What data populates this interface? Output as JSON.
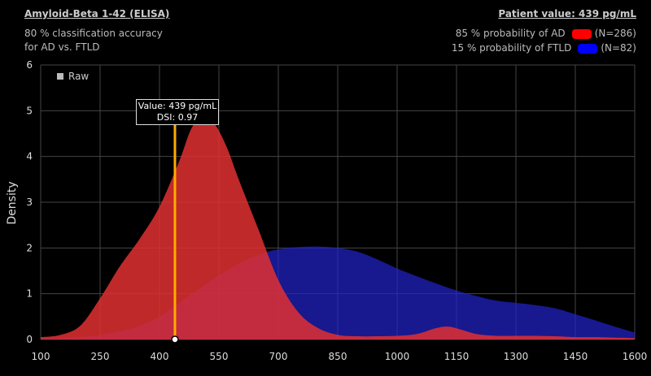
{
  "header": {
    "title": "Amyloid-Beta 1-42 (ELISA)",
    "accuracy_line1": "80 % classification accuracy",
    "accuracy_line2": "for AD vs. FTLD",
    "patient_value": "Patient value: 439 pg/mL"
  },
  "legend": {
    "ad": {
      "label": "85 % probability of AD",
      "count": "(N=286)",
      "color": "#ff0000"
    },
    "ftld": {
      "label": "15 % probability of FTLD",
      "count": "(N=82)",
      "color": "#0000ff"
    }
  },
  "raw_toggle": {
    "label": "Raw"
  },
  "tooltip": {
    "line1": "Value: 439 pg/mL",
    "line2": "DSI: 0.97"
  },
  "chart_data": {
    "type": "area",
    "ylabel": "Density",
    "xlim": [
      100,
      1600
    ],
    "ylim": [
      0,
      6
    ],
    "x_ticks": [
      100,
      250,
      400,
      550,
      700,
      850,
      1000,
      1150,
      1300,
      1450,
      1600
    ],
    "y_ticks": [
      0,
      1,
      2,
      3,
      4,
      5,
      6
    ],
    "grid": true,
    "marker": {
      "x": 439,
      "color": "#ffaa00"
    },
    "series": [
      {
        "name": "AD",
        "color": "#e03030",
        "x": [
          100,
          150,
          200,
          250,
          300,
          350,
          400,
          450,
          480,
          510,
          540,
          570,
          600,
          650,
          700,
          750,
          800,
          850,
          900,
          950,
          1000,
          1050,
          1100,
          1130,
          1160,
          1200,
          1250,
          1300,
          1350,
          1400,
          1450,
          1500,
          1550,
          1600
        ],
        "values": [
          0.05,
          0.1,
          0.3,
          0.9,
          1.6,
          2.2,
          2.9,
          3.9,
          4.6,
          4.9,
          4.7,
          4.2,
          3.5,
          2.4,
          1.3,
          0.6,
          0.25,
          0.1,
          0.07,
          0.07,
          0.08,
          0.12,
          0.25,
          0.28,
          0.22,
          0.12,
          0.08,
          0.08,
          0.08,
          0.07,
          0.05,
          0.05,
          0.04,
          0.03
        ]
      },
      {
        "name": "FTLD",
        "color": "#2222cc",
        "x": [
          100,
          150,
          200,
          250,
          300,
          350,
          400,
          450,
          500,
          550,
          600,
          650,
          700,
          750,
          800,
          850,
          900,
          950,
          1000,
          1050,
          1100,
          1150,
          1200,
          1250,
          1300,
          1350,
          1400,
          1450,
          1500,
          1550,
          1600
        ],
        "values": [
          0.02,
          0.03,
          0.05,
          0.1,
          0.18,
          0.3,
          0.5,
          0.8,
          1.1,
          1.4,
          1.65,
          1.85,
          1.97,
          2.02,
          2.03,
          2.0,
          1.92,
          1.75,
          1.55,
          1.38,
          1.22,
          1.07,
          0.95,
          0.85,
          0.8,
          0.75,
          0.68,
          0.55,
          0.42,
          0.28,
          0.15
        ]
      }
    ]
  }
}
